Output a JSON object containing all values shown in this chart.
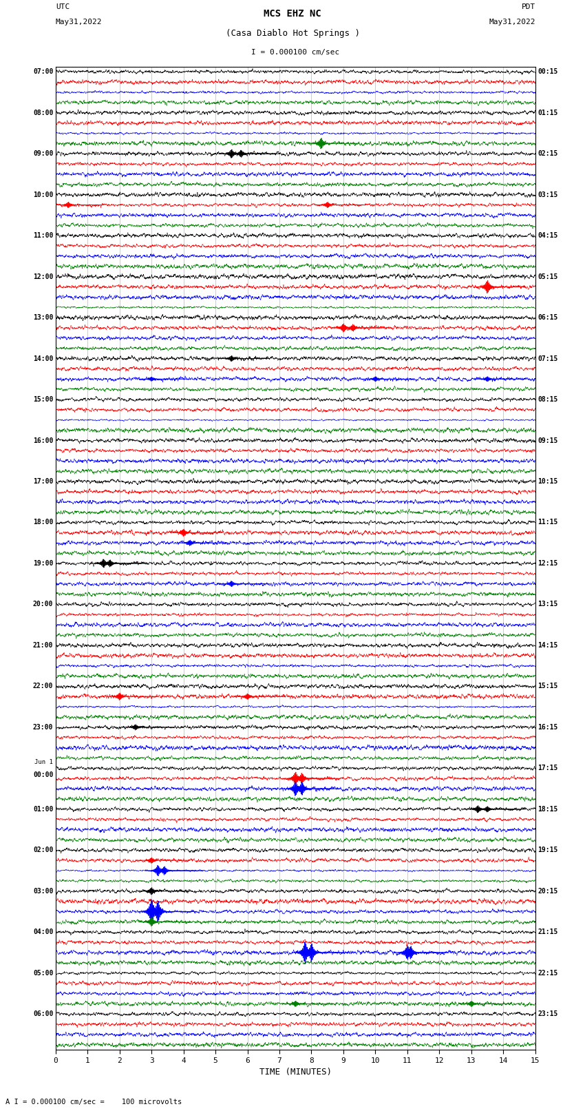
{
  "title_line1": "MCS EHZ NC",
  "title_line2": "(Casa Diablo Hot Springs )",
  "scale_label": "I = 0.000100 cm/sec",
  "bottom_label": "A I = 0.000100 cm/sec =    100 microvolts",
  "xlabel": "TIME (MINUTES)",
  "left_times": [
    "07:00",
    "08:00",
    "09:00",
    "10:00",
    "11:00",
    "12:00",
    "13:00",
    "14:00",
    "15:00",
    "16:00",
    "17:00",
    "18:00",
    "19:00",
    "20:00",
    "21:00",
    "22:00",
    "23:00",
    "Jun 1\n00:00",
    "01:00",
    "02:00",
    "03:00",
    "04:00",
    "05:00",
    "06:00"
  ],
  "right_times": [
    "00:15",
    "01:15",
    "02:15",
    "03:15",
    "04:15",
    "05:15",
    "06:15",
    "07:15",
    "08:15",
    "09:15",
    "10:15",
    "11:15",
    "12:15",
    "13:15",
    "14:15",
    "15:15",
    "16:15",
    "17:15",
    "18:15",
    "19:15",
    "20:15",
    "21:15",
    "22:15",
    "23:15"
  ],
  "colors": [
    "black",
    "red",
    "blue",
    "green"
  ],
  "n_rows": 24,
  "n_traces_per_row": 4,
  "x_min": 0,
  "x_max": 15,
  "x_ticks": [
    0,
    1,
    2,
    3,
    4,
    5,
    6,
    7,
    8,
    9,
    10,
    11,
    12,
    13,
    14,
    15
  ],
  "bg_color": "#ffffff",
  "grid_color": "#888888",
  "fig_width": 8.5,
  "fig_height": 16.13
}
